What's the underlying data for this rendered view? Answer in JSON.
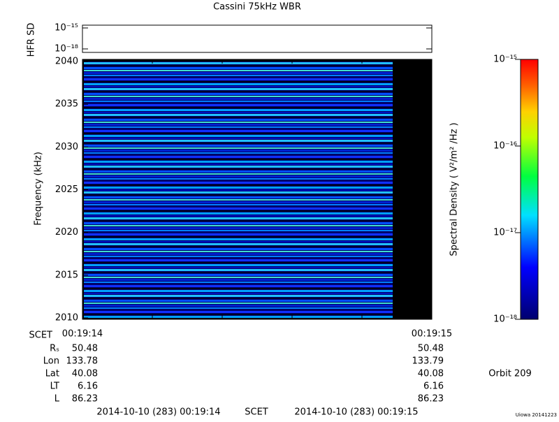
{
  "chart_data": {
    "type": "spectrogram",
    "title": "Cassini 75kHz WBR",
    "y_label": "Frequency (kHz)",
    "ylim": [
      2010,
      2040
    ],
    "yticks": [
      2010,
      2015,
      2020,
      2025,
      2030,
      2035,
      2040
    ],
    "x_start_label": "00:19:14",
    "x_end_label": "00:19:15",
    "hfr_panel": {
      "y_label": "HFR SD",
      "ylim": [
        -18.5,
        -14.6
      ],
      "yticks": [
        {
          "value": -15,
          "label": "10⁻¹⁵"
        },
        {
          "value": -18,
          "label": "10⁻¹⁸"
        }
      ]
    },
    "colorbar": {
      "label": "Spectral Density ( V²/m² /Hz )",
      "log": true,
      "lim": [
        -18,
        -15
      ],
      "ticks": [
        {
          "value": -15,
          "label": "10⁻¹⁵"
        },
        {
          "value": -16,
          "label": "10⁻¹⁶"
        },
        {
          "value": -17,
          "label": "10⁻¹⁷"
        },
        {
          "value": -18,
          "label": "10⁻¹⁸"
        }
      ]
    },
    "ephemeris": {
      "time_label": "SCET",
      "rows": [
        {
          "name": "Rₛ",
          "start": 50.48,
          "end": 50.48
        },
        {
          "name": "Lon",
          "start": 133.78,
          "end": 133.79
        },
        {
          "name": "Lat",
          "start": 40.08,
          "end": 40.08
        },
        {
          "name": "LT",
          "start": 6.16,
          "end": 6.16
        },
        {
          "name": "L",
          "start": 86.23,
          "end": 86.23
        }
      ]
    },
    "footer": {
      "start": "2014-10-10 (283) 00:19:14",
      "label": "SCET",
      "end": "2014-10-10 (283) 00:19:15"
    },
    "orbit": "Orbit 209",
    "credit": "Uiowa 20141223"
  }
}
